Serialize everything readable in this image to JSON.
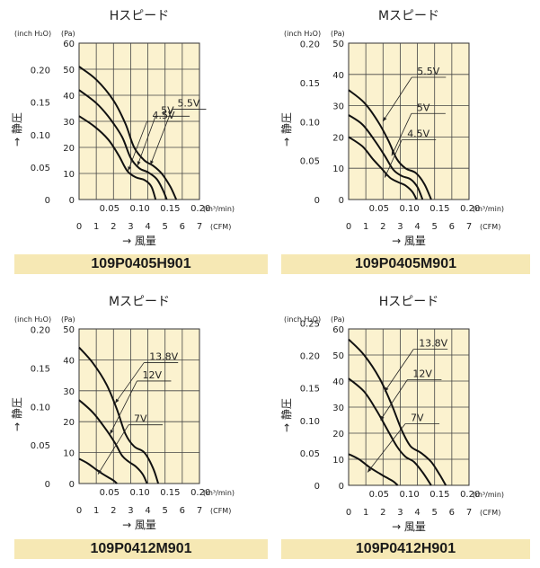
{
  "chart_data": [
    {
      "type": "line",
      "title": "Hスピード",
      "model": "109P0405H901",
      "left_axis_unit": "(inch H₂O)",
      "right_axis_unit": "(Pa)",
      "ylabel": "→ 静圧",
      "xlabel": "→ 風量",
      "x_unit_top": "(m³/min)",
      "x_unit_bottom": "(CFM)",
      "ylim": [
        0,
        60
      ],
      "y_ticks": [
        0,
        10,
        20,
        30,
        40,
        50,
        60
      ],
      "y_ticks_inch": [
        "0",
        "0.05",
        "0.10",
        "0.15",
        "0.20"
      ],
      "y_ticks_inch_values": [
        0,
        12.45,
        24.9,
        37.35,
        49.8
      ],
      "xlim": [
        0,
        7
      ],
      "x_ticks_cfm": [
        "0",
        "1",
        "2",
        "3",
        "4",
        "5",
        "6",
        "7"
      ],
      "x_ticks_m3": [
        "0.05",
        "0.10",
        "0.15",
        "0.20"
      ],
      "x_ticks_m3_values": [
        1.766,
        3.531,
        5.297,
        7.063
      ],
      "series": [
        {
          "name": "5.5V",
          "x": [
            0,
            1,
            2,
            2.7,
            3.2,
            3.8,
            4.3,
            4.8,
            5.3,
            5.65
          ],
          "y": [
            51,
            46,
            38,
            29,
            20,
            15,
            13,
            10,
            5,
            0
          ]
        },
        {
          "name": "5V",
          "x": [
            0,
            1,
            1.8,
            2.5,
            3,
            3.5,
            4,
            4.5,
            4.85,
            5.1
          ],
          "y": [
            42,
            37,
            31,
            24,
            16,
            12,
            10.5,
            8,
            4,
            0
          ]
        },
        {
          "name": "4.5V",
          "x": [
            0,
            0.9,
            1.7,
            2.3,
            2.8,
            3.3,
            3.8,
            4.2,
            4.45
          ],
          "y": [
            32,
            28,
            23,
            17,
            11,
            8.5,
            7.5,
            5,
            0
          ]
        }
      ],
      "callouts": [
        {
          "series": "5.5V",
          "target": [
            4.15,
            13.3
          ]
        },
        {
          "series": "5V",
          "target": [
            3.4,
            13
          ]
        },
        {
          "series": "4.5V",
          "target": [
            2.85,
            11
          ]
        }
      ]
    },
    {
      "type": "line",
      "title": "Mスピード",
      "model": "109P0405M901",
      "left_axis_unit": "(inch H₂O)",
      "right_axis_unit": "(Pa)",
      "ylabel": "→ 静圧",
      "xlabel": "→ 風量",
      "x_unit_top": "(m³/min)",
      "x_unit_bottom": "(CFM)",
      "ylim": [
        0,
        50
      ],
      "y_ticks": [
        0,
        10,
        20,
        30,
        40,
        50
      ],
      "y_ticks_inch": [
        "0",
        "0.05",
        "0.10",
        "0.15",
        "0.20"
      ],
      "y_ticks_inch_values": [
        0,
        12.45,
        24.9,
        37.35,
        49.8
      ],
      "xlim": [
        0,
        7
      ],
      "x_ticks_cfm": [
        "0",
        "1",
        "2",
        "3",
        "4",
        "5",
        "6",
        "7"
      ],
      "x_ticks_m3": [
        "0.05",
        "0.10",
        "0.15",
        "0.20"
      ],
      "x_ticks_m3_values": [
        1.766,
        3.531,
        5.297,
        7.063
      ],
      "series": [
        {
          "name": "5.5V",
          "x": [
            0,
            0.9,
            1.7,
            2.3,
            2.8,
            3.3,
            3.9,
            4.4,
            4.8
          ],
          "y": [
            35,
            31,
            25,
            19,
            13,
            10,
            8.5,
            5,
            0
          ]
        },
        {
          "name": "5V",
          "x": [
            0,
            0.8,
            1.5,
            2.1,
            2.6,
            3.1,
            3.6,
            4,
            4.3
          ],
          "y": [
            27,
            24,
            19,
            14,
            9.5,
            7.5,
            6.5,
            4,
            0
          ]
        },
        {
          "name": "4.5V",
          "x": [
            0,
            0.8,
            1.4,
            1.9,
            2.4,
            2.9,
            3.3,
            3.7,
            3.95
          ],
          "y": [
            20,
            17,
            13,
            10,
            7,
            5.5,
            4.5,
            2.5,
            0
          ]
        }
      ],
      "callouts": [
        {
          "series": "5.5V",
          "target": [
            2,
            25
          ]
        },
        {
          "series": "5V",
          "target": [
            2.5,
            14
          ]
        },
        {
          "series": "4.5V",
          "target": [
            2.1,
            7
          ]
        }
      ]
    },
    {
      "type": "line",
      "title": "Mスピード",
      "model": "109P0412M901",
      "left_axis_unit": "(inch H₂O)",
      "right_axis_unit": "(Pa)",
      "ylabel": "→ 静圧",
      "xlabel": "→ 風量",
      "x_unit_top": "(m³/min)",
      "x_unit_bottom": "(CFM)",
      "ylim": [
        0,
        50
      ],
      "y_ticks": [
        0,
        10,
        20,
        30,
        40,
        50
      ],
      "y_ticks_inch": [
        "0",
        "0.05",
        "0.10",
        "0.15",
        "0.20"
      ],
      "y_ticks_inch_values": [
        0,
        12.45,
        24.9,
        37.35,
        49.8
      ],
      "xlim": [
        0,
        7
      ],
      "x_ticks_cfm": [
        "0",
        "1",
        "2",
        "3",
        "4",
        "5",
        "6",
        "7"
      ],
      "x_ticks_m3": [
        "0.05",
        "0.10",
        "0.15",
        "0.20"
      ],
      "x_ticks_m3_values": [
        1.766,
        3.531,
        5.297,
        7.063
      ],
      "series": [
        {
          "name": "13.8V",
          "x": [
            0,
            0.8,
            1.6,
            2.2,
            2.7,
            3.2,
            3.8,
            4.3,
            4.6
          ],
          "y": [
            44,
            39,
            32,
            24,
            16,
            12,
            10,
            5,
            0
          ]
        },
        {
          "name": "12V",
          "x": [
            0,
            0.8,
            1.5,
            2.1,
            2.5,
            2.9,
            3.3,
            3.7,
            3.95
          ],
          "y": [
            27,
            23,
            18,
            13,
            9,
            7,
            5.5,
            3,
            0
          ]
        },
        {
          "name": "7V",
          "x": [
            0,
            0.5,
            1,
            1.4,
            1.7,
            2,
            2.2
          ],
          "y": [
            8,
            6.5,
            4.5,
            3,
            2,
            1,
            0
          ]
        }
      ],
      "callouts": [
        {
          "series": "13.8V",
          "target": [
            2.1,
            26
          ]
        },
        {
          "series": "12V",
          "target": [
            1.8,
            16
          ]
        },
        {
          "series": "7V",
          "target": [
            1.1,
            3
          ]
        }
      ]
    },
    {
      "type": "line",
      "title": "Hスピード",
      "model": "109P0412H901",
      "left_axis_unit": "(inch H₂O)",
      "right_axis_unit": "(Pa)",
      "ylabel": "→ 静圧",
      "xlabel": "→ 風量",
      "x_unit_top": "(m³/min)",
      "x_unit_bottom": "(CFM)",
      "ylim": [
        0,
        60
      ],
      "y_ticks": [
        0,
        10,
        20,
        30,
        40,
        50,
        60
      ],
      "y_ticks_inch": [
        "0",
        "0.05",
        "0.10",
        "0.15",
        "0.20",
        "0.25"
      ],
      "y_ticks_inch_values": [
        0,
        12.45,
        24.9,
        37.35,
        49.8,
        62.25
      ],
      "xlim": [
        0,
        7
      ],
      "x_ticks_cfm": [
        "0",
        "1",
        "2",
        "3",
        "4",
        "5",
        "6",
        "7"
      ],
      "x_ticks_m3": [
        "0.05",
        "0.10",
        "0.15",
        "0.20"
      ],
      "x_ticks_m3_values": [
        1.766,
        3.531,
        5.297,
        7.063
      ],
      "series": [
        {
          "name": "13.8V",
          "x": [
            0,
            0.9,
            1.8,
            2.5,
            3.1,
            3.6,
            4.2,
            4.8,
            5.3,
            5.65
          ],
          "y": [
            56,
            50,
            41,
            31,
            21,
            15,
            12.5,
            9,
            4,
            0
          ]
        },
        {
          "name": "12V",
          "x": [
            0,
            0.9,
            1.6,
            2.2,
            2.8,
            3.3,
            3.8,
            4.3,
            4.8
          ],
          "y": [
            41,
            36,
            29,
            22,
            15,
            11,
            9,
            5,
            0
          ]
        },
        {
          "name": "7V",
          "x": [
            0,
            0.6,
            1.2,
            1.8,
            2.2,
            2.6,
            2.85
          ],
          "y": [
            12,
            10,
            7,
            4.5,
            3,
            1.5,
            0
          ]
        }
      ],
      "callouts": [
        {
          "series": "13.8V",
          "target": [
            2.1,
            36
          ]
        },
        {
          "series": "12V",
          "target": [
            1.85,
            25
          ]
        },
        {
          "series": "7V",
          "target": [
            1.1,
            5
          ]
        }
      ]
    }
  ]
}
